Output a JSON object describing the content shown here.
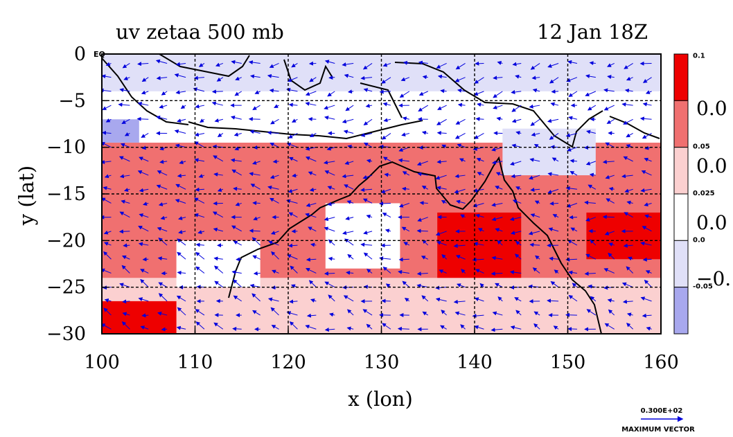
{
  "chart_data": {
    "type": "heatmap",
    "title": "uv zetaa 500 mb",
    "date_label": "12 Jan 18Z",
    "xlabel": "x (lon)",
    "ylabel": "y (lat)",
    "xlim": [
      100,
      160
    ],
    "ylim": [
      -30,
      0
    ],
    "x_ticks": [
      "100",
      "110",
      "120",
      "130",
      "140",
      "150",
      "160"
    ],
    "y_ticks": [
      "0",
      "−5",
      "−10",
      "−15",
      "−20",
      "−25",
      "−30"
    ],
    "y_tick_values": [
      0,
      -5,
      -10,
      -15,
      -20,
      -25,
      -30
    ],
    "x_tick_values": [
      100,
      110,
      120,
      130,
      140,
      150,
      160
    ],
    "eq_label": "EQ",
    "grid": true,
    "colorbar": {
      "levels": [
        {
          "color": "#ee0000",
          "label": "0.1"
        },
        {
          "color": "#f07070",
          "label": "0.05"
        },
        {
          "color": "#fbd0d0",
          "label": "0.025"
        },
        {
          "color": "#ffffff",
          "label": "0.0"
        },
        {
          "color": "#e0e0f8",
          "label": "-0.05"
        },
        {
          "color": "#a8a8ee",
          "label": ""
        }
      ],
      "big_labels": [
        "0.0",
        "0.0",
        "0.0",
        "−0."
      ]
    },
    "vector_reference": {
      "value_label": "0.300E+02",
      "caption": "MAXIMUM VECTOR"
    },
    "regions": [
      {
        "level": 1,
        "lon": [
          100,
          160
        ],
        "lat": [
          -30,
          -9.5
        ]
      },
      {
        "level": 2,
        "lon": [
          100,
          160
        ],
        "lat": [
          -30,
          -24
        ]
      },
      {
        "level": 0,
        "lon": [
          100,
          108
        ],
        "lat": [
          -30,
          -26.5
        ]
      },
      {
        "level": 0,
        "lon": [
          136,
          145
        ],
        "lat": [
          -24,
          -17
        ]
      },
      {
        "level": 0,
        "lon": [
          152,
          160
        ],
        "lat": [
          -22,
          -17
        ]
      },
      {
        "level": 3,
        "lon": [
          100,
          160
        ],
        "lat": [
          -9.5,
          -4
        ]
      },
      {
        "level": 4,
        "lon": [
          100,
          160
        ],
        "lat": [
          -4,
          0
        ]
      },
      {
        "level": 4,
        "lon": [
          143,
          153
        ],
        "lat": [
          -13,
          -8
        ]
      },
      {
        "level": 3,
        "lon": [
          108,
          117
        ],
        "lat": [
          -25,
          -20
        ]
      },
      {
        "level": 3,
        "lon": [
          124,
          132
        ],
        "lat": [
          -23,
          -16
        ]
      },
      {
        "level": 5,
        "lon": [
          100,
          104
        ],
        "lat": [
          -9.5,
          -7
        ]
      }
    ],
    "colors": {
      "coast": "#000000",
      "vector": "#0000dd",
      "grid": "#000000"
    }
  }
}
